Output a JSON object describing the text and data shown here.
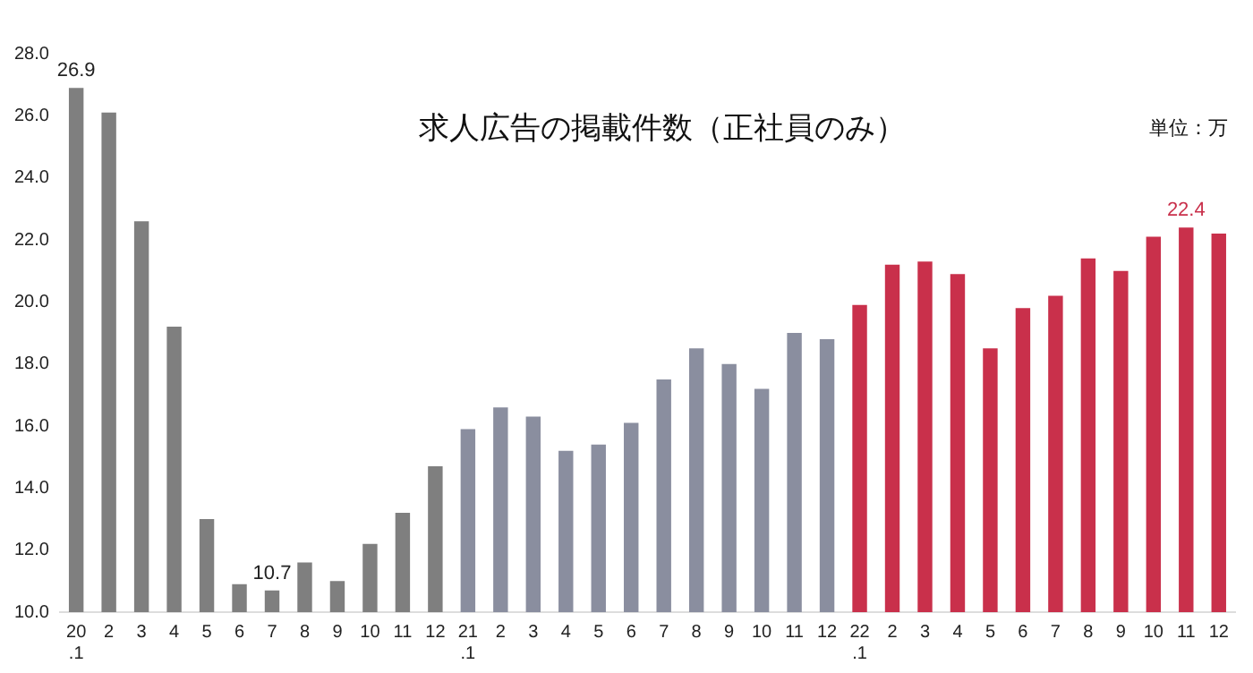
{
  "chart_data": {
    "type": "bar",
    "title": "求人広告の掲載件数（正社員のみ）",
    "annotations": [
      "単位：万"
    ],
    "categories": [
      "20\n.1",
      "2",
      "3",
      "4",
      "5",
      "6",
      "7",
      "8",
      "9",
      "10",
      "11",
      "12",
      "21\n.1",
      "2",
      "3",
      "4",
      "5",
      "6",
      "7",
      "8",
      "9",
      "10",
      "11",
      "12",
      "22\n.1",
      "2",
      "3",
      "4",
      "5",
      "6",
      "7",
      "8",
      "9",
      "10",
      "11",
      "12"
    ],
    "values": [
      26.9,
      26.1,
      22.6,
      19.2,
      13.0,
      10.9,
      10.7,
      11.6,
      11.0,
      12.2,
      13.2,
      14.7,
      15.9,
      16.6,
      16.3,
      15.2,
      15.4,
      16.1,
      17.5,
      18.5,
      18.0,
      17.2,
      19.0,
      18.8,
      19.9,
      21.2,
      21.3,
      20.9,
      18.5,
      19.8,
      20.2,
      21.4,
      21.0,
      22.1,
      22.4,
      22.2
    ],
    "colors": [
      "#7f7f7f",
      "#7f7f7f",
      "#7f7f7f",
      "#7f7f7f",
      "#7f7f7f",
      "#7f7f7f",
      "#7f7f7f",
      "#7f7f7f",
      "#7f7f7f",
      "#7f7f7f",
      "#7f7f7f",
      "#7f7f7f",
      "#8a8e9f",
      "#8a8e9f",
      "#8a8e9f",
      "#8a8e9f",
      "#8a8e9f",
      "#8a8e9f",
      "#8a8e9f",
      "#8a8e9f",
      "#8a8e9f",
      "#8a8e9f",
      "#8a8e9f",
      "#8a8e9f",
      "#c9304b",
      "#c9304b",
      "#c9304b",
      "#c9304b",
      "#c9304b",
      "#c9304b",
      "#c9304b",
      "#c9304b",
      "#c9304b",
      "#c9304b",
      "#c9304b",
      "#c9304b"
    ],
    "value_labels": [
      "26.9",
      null,
      null,
      null,
      null,
      null,
      "10.7",
      null,
      null,
      null,
      null,
      null,
      null,
      null,
      null,
      null,
      null,
      null,
      null,
      null,
      null,
      null,
      null,
      null,
      null,
      null,
      null,
      null,
      null,
      null,
      null,
      null,
      null,
      null,
      "22.4",
      null
    ],
    "ylim": [
      10,
      28
    ],
    "yticks": [
      {
        "value": 10,
        "label": "10.0"
      },
      {
        "value": 12,
        "label": "12.0"
      },
      {
        "value": 14,
        "label": "14.0"
      },
      {
        "value": 16,
        "label": "16.0"
      },
      {
        "value": 18,
        "label": "18.0"
      },
      {
        "value": 20,
        "label": "20.0"
      },
      {
        "value": 22,
        "label": "22.0"
      },
      {
        "value": 24,
        "label": "24.0"
      },
      {
        "value": 26,
        "label": "26.0"
      },
      {
        "value": 28,
        "label": "28.0"
      }
    ],
    "grid": false,
    "legend": false
  }
}
